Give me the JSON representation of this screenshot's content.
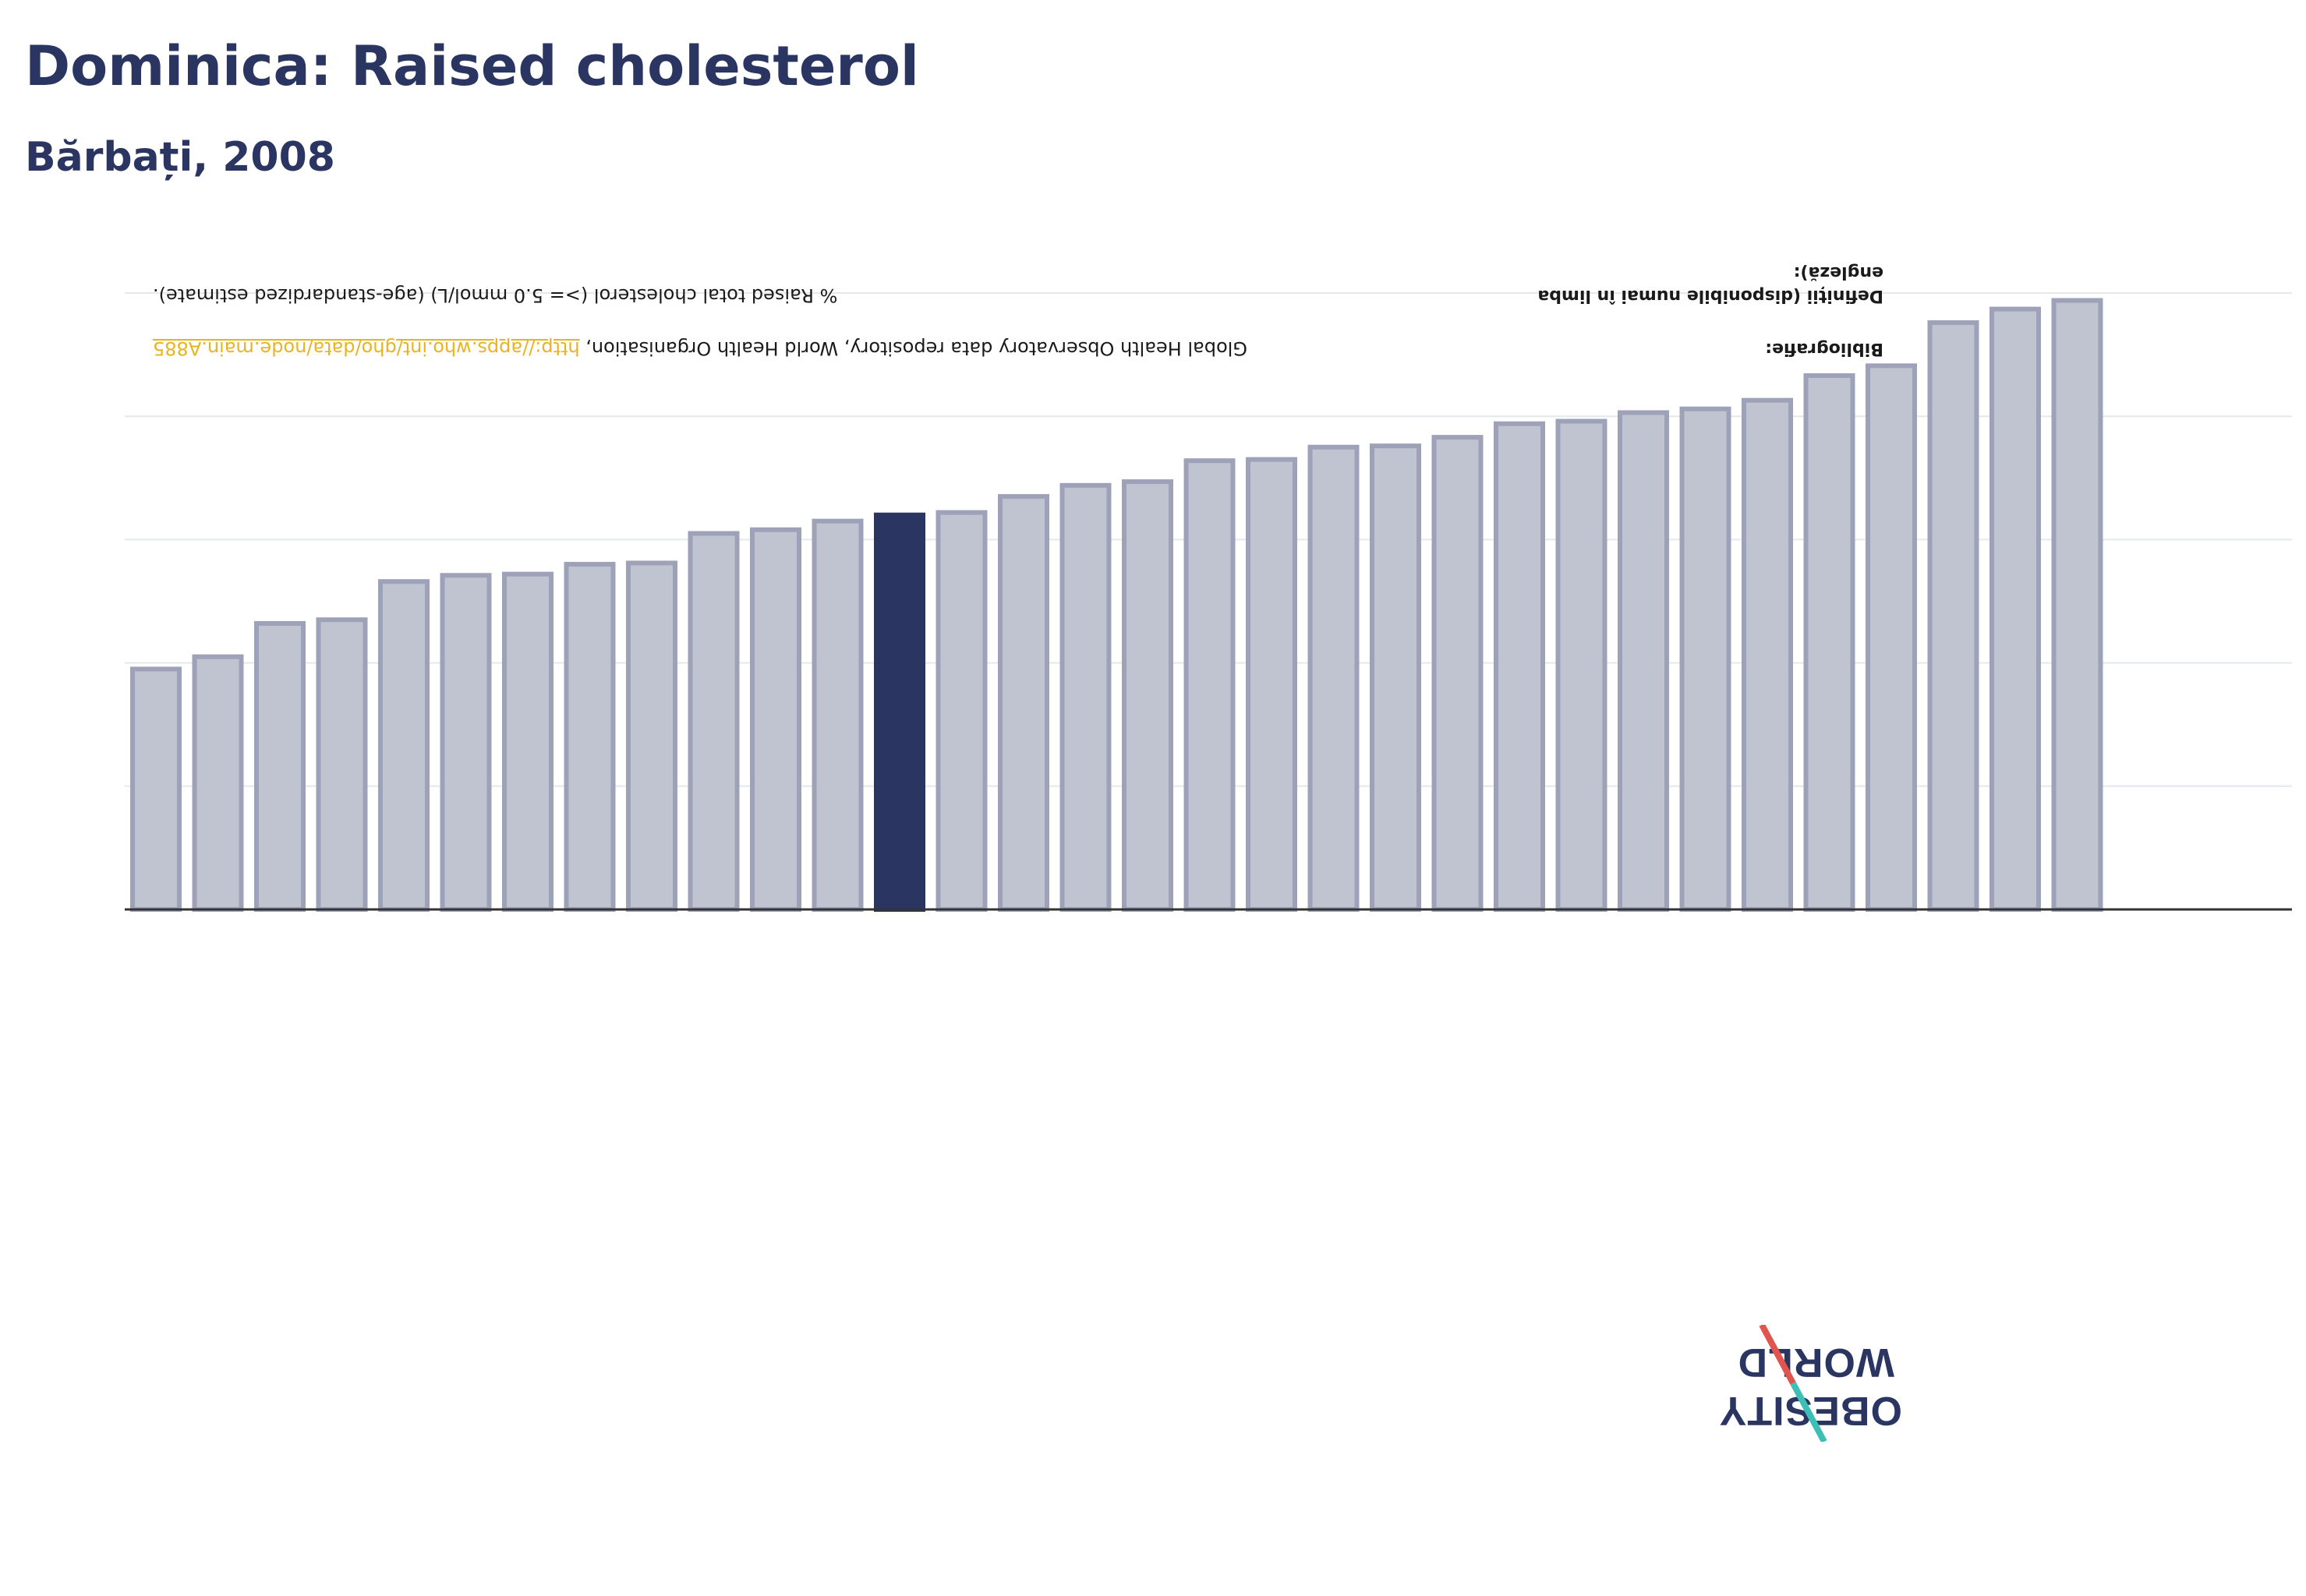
{
  "header": {
    "title": "Dominica: Raised cholesterol",
    "subtitle": "Bărbați, 2008"
  },
  "notes": {
    "definitions_label": "Definiții (disponibile numai în limba engleză):",
    "definitions_value": "% Raised total cholesterol (>= 5.0 mmol/L) (age-standardized estimate).",
    "bibliography_label": "Bibliografie:",
    "bibliography_value": "Global Health Observatory data repository, World Health Organisation, ",
    "bibliography_link": "http://apps.who.int/gho/data/node.main.A885"
  },
  "logo": {
    "line1": "OBESITY",
    "line2": "WORLD"
  },
  "colors": {
    "bar": "#c0c3d0",
    "bar_stroke": "#9da2b8",
    "highlight": "#2b3561",
    "axis": "#333333",
    "grid": "#e4e9ee",
    "title": "#2b3561",
    "logo_red": "#e0564f",
    "logo_teal": "#3dbfb5"
  },
  "chart_data": {
    "type": "bar",
    "title": "Dominica: Raised cholesterol",
    "subtitle": "Bărbați, 2008",
    "xlabel": "",
    "ylabel": "",
    "ylim": [
      0,
      50
    ],
    "gridlines": [
      10,
      20,
      30,
      40,
      50
    ],
    "highlight_index": 12,
    "values": [
      19.5,
      20.5,
      23.2,
      23.5,
      26.6,
      27.1,
      27.2,
      28.0,
      28.1,
      30.5,
      30.8,
      31.5,
      32.0,
      32.2,
      33.5,
      34.4,
      34.7,
      36.4,
      36.5,
      37.5,
      37.6,
      38.3,
      39.4,
      39.6,
      40.3,
      40.6,
      41.3,
      43.3,
      44.1,
      47.6,
      48.7,
      49.4
    ]
  }
}
